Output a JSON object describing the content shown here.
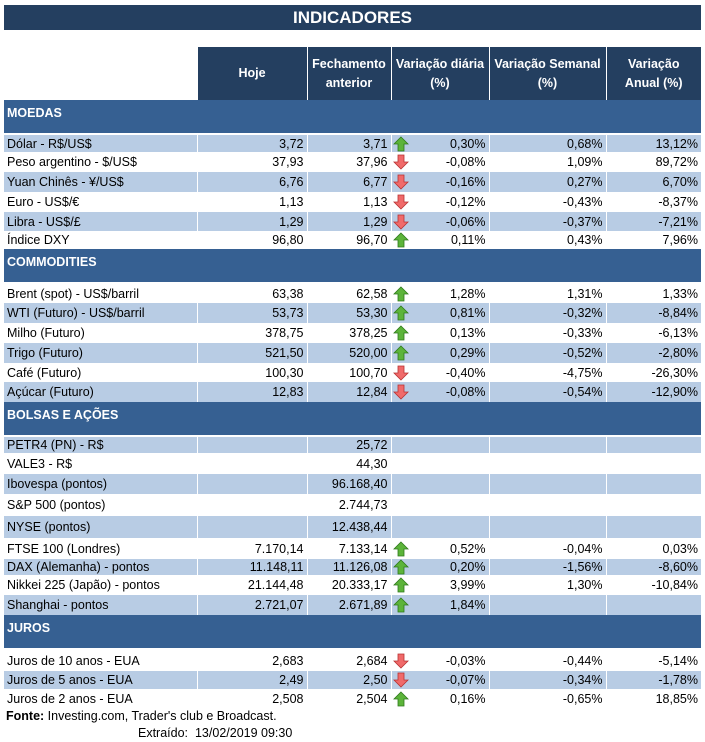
{
  "title": "INDICADORES",
  "headers": [
    "Hoje",
    "Fechamento anterior",
    "Variação diária (%)",
    "Variação Semanal (%)",
    "Variação Anual (%)"
  ],
  "colors": {
    "title_bg": "#243f60",
    "section_bg": "#366092",
    "row_shade": "#b8cce4",
    "up": "#4ea72e",
    "down": "#e8474a"
  },
  "sections": [
    {
      "name": "MOEDAS",
      "rows": [
        {
          "label": "Dólar - R$/US$",
          "hoje": "3,72",
          "fech": "3,71",
          "dir": "up",
          "vd": "0,30%",
          "vs": "0,68%",
          "va": "13,12%"
        },
        {
          "label": "Peso argentino - $/US$",
          "hoje": "37,93",
          "fech": "37,96",
          "dir": "down",
          "vd": "-0,08%",
          "vs": "1,09%",
          "va": "89,72%"
        },
        {
          "label": "Yuan Chinês - ¥/US$",
          "hoje": "6,76",
          "fech": "6,77",
          "dir": "down",
          "vd": "-0,16%",
          "vs": "0,27%",
          "va": "6,70%"
        },
        {
          "label": "Euro - US$/€",
          "hoje": "1,13",
          "fech": "1,13",
          "dir": "down",
          "vd": "-0,12%",
          "vs": "-0,43%",
          "va": "-8,37%"
        },
        {
          "label": "Libra - US$/£",
          "hoje": "1,29",
          "fech": "1,29",
          "dir": "down",
          "vd": "-0,06%",
          "vs": "-0,37%",
          "va": "-7,21%"
        },
        {
          "label": "Índice DXY",
          "hoje": "96,80",
          "fech": "96,70",
          "dir": "up",
          "vd": "0,11%",
          "vs": "0,43%",
          "va": "7,96%"
        }
      ]
    },
    {
      "name": "COMMODITIES",
      "rows": [
        {
          "label": "Brent (spot) - US$/barril",
          "hoje": "63,38",
          "fech": "62,58",
          "dir": "up",
          "vd": "1,28%",
          "vs": "1,31%",
          "va": "1,33%"
        },
        {
          "label": "WTI (Futuro) - US$/barril",
          "hoje": "53,73",
          "fech": "53,30",
          "dir": "up",
          "vd": "0,81%",
          "vs": "-0,32%",
          "va": "-8,84%"
        },
        {
          "label": "Milho (Futuro)",
          "hoje": "378,75",
          "fech": "378,25",
          "dir": "up",
          "vd": "0,13%",
          "vs": "-0,33%",
          "va": "-6,13%"
        },
        {
          "label": "Trigo (Futuro)",
          "hoje": "521,50",
          "fech": "520,00",
          "dir": "up",
          "vd": "0,29%",
          "vs": "-0,52%",
          "va": "-2,80%"
        },
        {
          "label": "Café (Futuro)",
          "hoje": "100,30",
          "fech": "100,70",
          "dir": "down",
          "vd": "-0,40%",
          "vs": "-4,75%",
          "va": "-26,30%"
        },
        {
          "label": "Açúcar (Futuro)",
          "hoje": "12,83",
          "fech": "12,84",
          "dir": "down",
          "vd": "-0,08%",
          "vs": "-0,54%",
          "va": "-12,90%"
        }
      ]
    },
    {
      "name": "BOLSAS E AÇÕES",
      "rows": [
        {
          "label": "PETR4 (PN) - R$",
          "hoje": "",
          "fech": "25,72",
          "dir": "",
          "vd": "",
          "vs": "",
          "va": ""
        },
        {
          "label": "VALE3 - R$",
          "hoje": "",
          "fech": "44,30",
          "dir": "",
          "vd": "",
          "vs": "",
          "va": ""
        },
        {
          "label": "Ibovespa (pontos)",
          "hoje": "",
          "fech": "96.168,40",
          "dir": "",
          "vd": "",
          "vs": "",
          "va": ""
        },
        {
          "label": "S&P 500 (pontos)",
          "hoje": "",
          "fech": "2.744,73",
          "dir": "",
          "vd": "",
          "vs": "",
          "va": ""
        },
        {
          "label": "NYSE (pontos)",
          "hoje": "",
          "fech": "12.438,44",
          "dir": "",
          "vd": "",
          "vs": "",
          "va": ""
        },
        {
          "label": "FTSE 100 (Londres)",
          "hoje": "7.170,14",
          "fech": "7.133,14",
          "dir": "up",
          "vd": "0,52%",
          "vs": "-0,04%",
          "va": "0,03%"
        },
        {
          "label": "DAX (Alemanha) - pontos",
          "hoje": "11.148,11",
          "fech": "11.126,08",
          "dir": "up",
          "vd": "0,20%",
          "vs": "-1,56%",
          "va": "-8,60%"
        },
        {
          "label": "Nikkei 225 (Japão) - pontos",
          "hoje": "21.144,48",
          "fech": "20.333,17",
          "dir": "up",
          "vd": "3,99%",
          "vs": "1,30%",
          "va": "-10,84%"
        },
        {
          "label": "Shanghai - pontos",
          "hoje": "2.721,07",
          "fech": "2.671,89",
          "dir": "up",
          "vd": "1,84%",
          "vs": "",
          "va": ""
        }
      ]
    },
    {
      "name": "JUROS",
      "rows": [
        {
          "label": "Juros de 10 anos - EUA",
          "hoje": "2,683",
          "fech": "2,684",
          "dir": "down",
          "vd": "-0,03%",
          "vs": "-0,44%",
          "va": "-5,14%"
        },
        {
          "label": "Juros de 5 anos - EUA",
          "hoje": "2,49",
          "fech": "2,50",
          "dir": "down",
          "vd": "-0,07%",
          "vs": "-0,34%",
          "va": "-1,78%"
        },
        {
          "label": "Juros de 2 anos - EUA",
          "hoje": "2,508",
          "fech": "2,504",
          "dir": "up",
          "vd": "0,16%",
          "vs": "-0,65%",
          "va": "18,85%"
        }
      ]
    }
  ],
  "footer": {
    "source_label": "Fonte:",
    "source": " Investing.com, Trader's club e Broadcast.",
    "extracted_label": "Extraído:",
    "extracted": "13/02/2019 09:30"
  }
}
